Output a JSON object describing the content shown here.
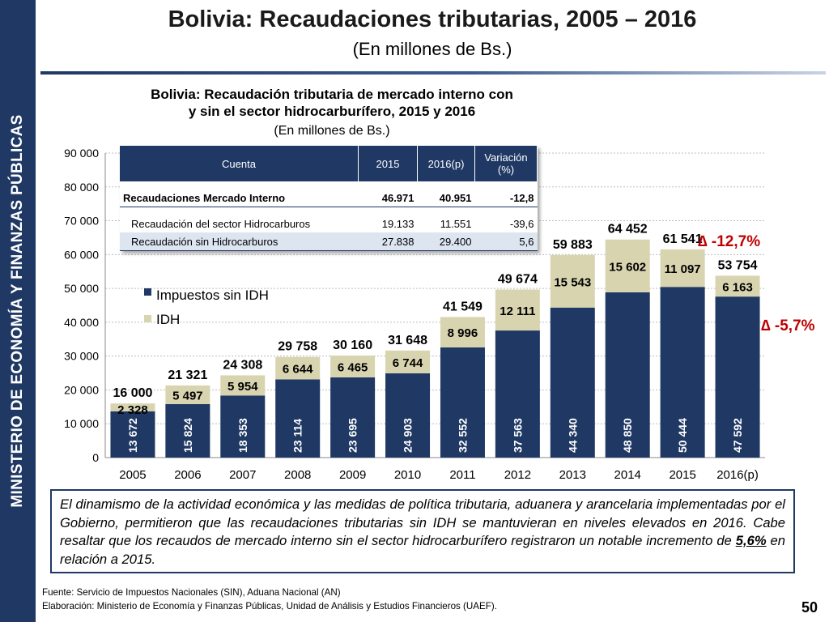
{
  "sidebar": {
    "text": "MINISTERIO DE ECONOMÍA Y FINANZAS PÚBLICAS"
  },
  "header": {
    "title": "Bolivia: Recaudaciones tributarias, 2005 – 2016",
    "subtitle": "(En millones de Bs.)"
  },
  "inset": {
    "title_line1": "Bolivia: Recaudación tributaria de mercado interno con",
    "title_line2": "y sin el sector hidrocarburífero, 2015 y 2016",
    "subtitle": "(En millones de Bs.)",
    "headers": [
      "Cuenta",
      "2015",
      "2016(p)",
      "Variación (%)"
    ],
    "rows": [
      {
        "label": "Recaudaciones Mercado Interno",
        "v2015": "46.971",
        "v2016": "40.951",
        "var": "-12,8"
      },
      {
        "label": "Recaudación del sector Hidrocarburos",
        "v2015": "19.133",
        "v2016": "11.551",
        "var": "-39,6"
      },
      {
        "label": "Recaudación sin Hidrocarburos",
        "v2015": "27.838",
        "v2016": "29.400",
        "var": "5,6"
      }
    ]
  },
  "chart_data": {
    "type": "bar",
    "stacked": true,
    "categories": [
      "2005",
      "2006",
      "2007",
      "2008",
      "2009",
      "2010",
      "2011",
      "2012",
      "2013",
      "2014",
      "2015",
      "2016(p)"
    ],
    "series": [
      {
        "name": "Impuestos sin IDH",
        "color": "#1f3864",
        "values": [
          13672,
          15824,
          18353,
          23114,
          23695,
          24903,
          32552,
          37563,
          44340,
          48850,
          50444,
          47592
        ]
      },
      {
        "name": "IDH",
        "color": "#d9d4b0",
        "values": [
          2328,
          5497,
          5954,
          6644,
          6465,
          6744,
          8996,
          12111,
          15543,
          15602,
          11097,
          6163
        ]
      }
    ],
    "totals": [
      16000,
      21321,
      24308,
      29758,
      30160,
      31648,
      41549,
      49674,
      59883,
      64452,
      61541,
      53754
    ],
    "labels_impuestos": [
      "13 672",
      "15 824",
      "18 353",
      "23 114",
      "23 695",
      "24 903",
      "32 552",
      "37 563",
      "44 340",
      "48 850",
      "50 444",
      "47 592"
    ],
    "labels_idh": [
      "2 328",
      "5 497",
      "5 954",
      "6 644",
      "6 465",
      "6 744",
      "8 996",
      "12 111",
      "15 543",
      "15 602",
      "11 097",
      "6 163"
    ],
    "labels_totals": [
      "16 000",
      "21 321",
      "24 308",
      "29 758",
      "30 160",
      "31 648",
      "41 549",
      "49 674",
      "59 883",
      "64 452",
      "61 541",
      "53 754"
    ],
    "yticks": [
      "0",
      "10 000",
      "20 000",
      "30 000",
      "40 000",
      "50 000",
      "60 000",
      "70 000",
      "80 000",
      "90 000"
    ],
    "ylim": [
      0,
      90000
    ],
    "legend_position": "upper-left",
    "grid": true,
    "annotations": [
      "∆ -12,7%",
      "∆ -5,7%"
    ]
  },
  "commentary": {
    "text_before": "El dinamismo de la actividad económica y las medidas de política tributaria, aduanera y arancelaria implementadas por el Gobierno, permitieron que las recaudaciones tributarias sin IDH se mantuvieran en niveles elevados en 2016. Cabe resaltar que los recaudos de mercado interno sin el sector hidrocarburífero registraron un notable incremento de ",
    "highlight": "5,6%",
    "text_after": " en relación a 2015."
  },
  "footer": {
    "source": "Fuente: Servicio de Impuestos Nacionales (SIN), Aduana Nacional (AN)",
    "elaboration": "Elaboración: Ministerio de Economía y Finanzas Públicas, Unidad de Análisis y Estudios Financieros (UAEF).",
    "page": "50"
  }
}
